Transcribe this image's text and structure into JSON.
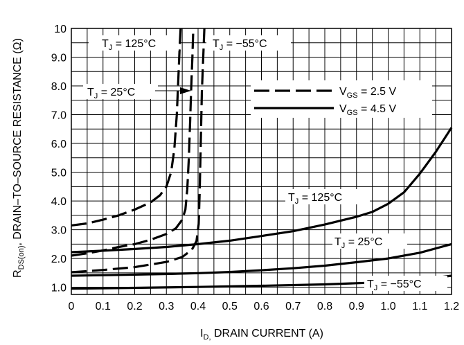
{
  "chart_data": {
    "type": "line",
    "xlabel": {
      "main": "I",
      "sub": "D,",
      "rest": " DRAIN CURRENT (A)"
    },
    "ylabel": {
      "main": "R",
      "sub": "DS(on)",
      "rest": ", DRAIN–TO–SOURCE RESISTANCE (Ω)"
    },
    "xlim": [
      0,
      1.2
    ],
    "ylim": [
      0.75,
      10
    ],
    "grid": true,
    "x_ticks": [
      "0",
      "0.1",
      "0.2",
      "0.3",
      "0.4",
      "0.5",
      "0.6",
      "0.7",
      "0.8",
      "0.9",
      "1.0",
      "1.1",
      "1.2"
    ],
    "x_tick_values": [
      0,
      0.1,
      0.2,
      0.3,
      0.4,
      0.5,
      0.6,
      0.7,
      0.8,
      0.9,
      1.0,
      1.1,
      1.2
    ],
    "y_ticks": [
      "1.0",
      "2.0",
      "3.0",
      "4.0",
      "5.0",
      "6.0",
      "7.0",
      "8.0",
      "9.0",
      "10"
    ],
    "y_tick_values": [
      1,
      2,
      3,
      4,
      5,
      6,
      7,
      8,
      9,
      10
    ],
    "legend": {
      "placement": "top-right",
      "entries": [
        {
          "main": "V",
          "sub": "GS",
          "rest": " = 2.5 V",
          "style": "dashed"
        },
        {
          "main": "V",
          "sub": "GS",
          "rest": " = 4.5 V",
          "style": "solid"
        }
      ]
    },
    "annotations": [
      {
        "id": "tj125-dashed",
        "main": "T",
        "sub": "J",
        "rest": " = 125°C"
      },
      {
        "id": "tjm55-dashed",
        "main": "T",
        "sub": "J",
        "rest": " = −55°C"
      },
      {
        "id": "tj25-dashed",
        "main": "T",
        "sub": "J",
        "rest": " = 25°C"
      },
      {
        "id": "tj125-solid",
        "main": "T",
        "sub": "J",
        "rest": " = 125°C"
      },
      {
        "id": "tj25-solid",
        "main": "T",
        "sub": "J",
        "rest": " = 25°C"
      },
      {
        "id": "tjm55-solid",
        "main": "T",
        "sub": "J",
        "rest": " = −55°C"
      }
    ],
    "series": [
      {
        "id": "vgs25-tj125",
        "style": "dashed",
        "x": [
          0,
          0.05,
          0.1,
          0.15,
          0.2,
          0.25,
          0.28,
          0.3,
          0.315,
          0.325,
          0.333,
          0.338,
          0.342,
          0.345
        ],
        "y": [
          3.15,
          3.22,
          3.35,
          3.5,
          3.7,
          3.95,
          4.2,
          4.5,
          5.0,
          5.8,
          7.0,
          8.3,
          9.4,
          10
        ]
      },
      {
        "id": "vgs25-tj25",
        "style": "dashed",
        "x": [
          0,
          0.05,
          0.1,
          0.15,
          0.2,
          0.25,
          0.3,
          0.33,
          0.35,
          0.36,
          0.366,
          0.371,
          0.375,
          0.378,
          0.382,
          0.385
        ],
        "y": [
          2.1,
          2.18,
          2.28,
          2.4,
          2.5,
          2.65,
          2.85,
          3.05,
          3.35,
          3.7,
          4.4,
          5.5,
          6.8,
          7.8,
          9.0,
          10
        ]
      },
      {
        "id": "vgs25-tjm55",
        "style": "dashed",
        "x": [
          0,
          0.1,
          0.2,
          0.3,
          0.35,
          0.38,
          0.395,
          0.402,
          0.405,
          0.408,
          0.412,
          0.417,
          0.42
        ],
        "y": [
          1.52,
          1.6,
          1.7,
          1.88,
          2.05,
          2.3,
          2.6,
          3.2,
          4.3,
          5.8,
          7.8,
          9.2,
          10
        ]
      },
      {
        "id": "vgs45-tj125",
        "style": "solid",
        "x": [
          0,
          0.1,
          0.2,
          0.3,
          0.4,
          0.5,
          0.6,
          0.7,
          0.8,
          0.9,
          0.95,
          1.0,
          1.05,
          1.1,
          1.15,
          1.2
        ],
        "y": [
          2.22,
          2.27,
          2.33,
          2.4,
          2.5,
          2.62,
          2.78,
          2.95,
          3.18,
          3.45,
          3.62,
          3.9,
          4.3,
          4.95,
          5.7,
          6.55
        ]
      },
      {
        "id": "vgs45-tj25",
        "style": "solid",
        "x": [
          0,
          0.1,
          0.2,
          0.3,
          0.4,
          0.5,
          0.6,
          0.7,
          0.8,
          0.9,
          1.0,
          1.1,
          1.2
        ],
        "y": [
          1.4,
          1.42,
          1.44,
          1.46,
          1.49,
          1.53,
          1.59,
          1.66,
          1.75,
          1.87,
          2.0,
          2.2,
          2.5
        ]
      },
      {
        "id": "vgs45-tjm55",
        "style": "solid",
        "x": [
          0,
          0.2,
          0.4,
          0.6,
          0.8,
          1.0,
          1.1,
          1.2
        ],
        "y": [
          0.95,
          0.98,
          1.01,
          1.05,
          1.1,
          1.18,
          1.26,
          1.4
        ]
      }
    ]
  }
}
